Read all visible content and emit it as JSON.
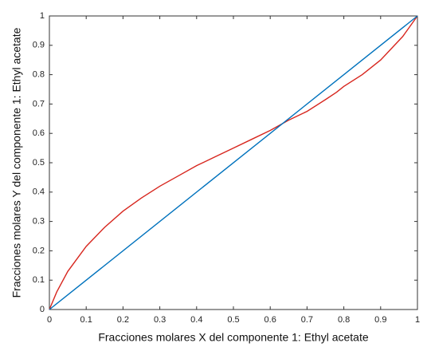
{
  "chart_data": {
    "type": "line",
    "xlabel": "Fracciones molares X del componente 1: Ethyl acetate",
    "ylabel": "Fracciones molares Y del componente 1: Ethyl acetate",
    "xlim": [
      0,
      1
    ],
    "ylim": [
      0,
      1
    ],
    "xticks": [
      0,
      0.1,
      0.2,
      0.3,
      0.4,
      0.5,
      0.6,
      0.7,
      0.8,
      0.9,
      1
    ],
    "yticks": [
      0,
      0.1,
      0.2,
      0.3,
      0.4,
      0.5,
      0.6,
      0.7,
      0.8,
      0.9,
      1
    ],
    "series": [
      {
        "color": "#d7261e",
        "x": [
          0,
          0.02,
          0.05,
          0.1,
          0.15,
          0.2,
          0.25,
          0.3,
          0.35,
          0.4,
          0.45,
          0.5,
          0.55,
          0.6,
          0.65,
          0.7,
          0.75,
          0.78,
          0.8,
          0.85,
          0.9,
          0.93,
          0.96,
          1
        ],
        "values": [
          0,
          0.06,
          0.13,
          0.215,
          0.28,
          0.335,
          0.38,
          0.42,
          0.455,
          0.49,
          0.52,
          0.55,
          0.58,
          0.61,
          0.645,
          0.675,
          0.715,
          0.74,
          0.76,
          0.8,
          0.85,
          0.89,
          0.93,
          1
        ]
      },
      {
        "color": "#0072bd",
        "x": [
          0,
          1
        ],
        "values": [
          0,
          1
        ]
      }
    ]
  }
}
